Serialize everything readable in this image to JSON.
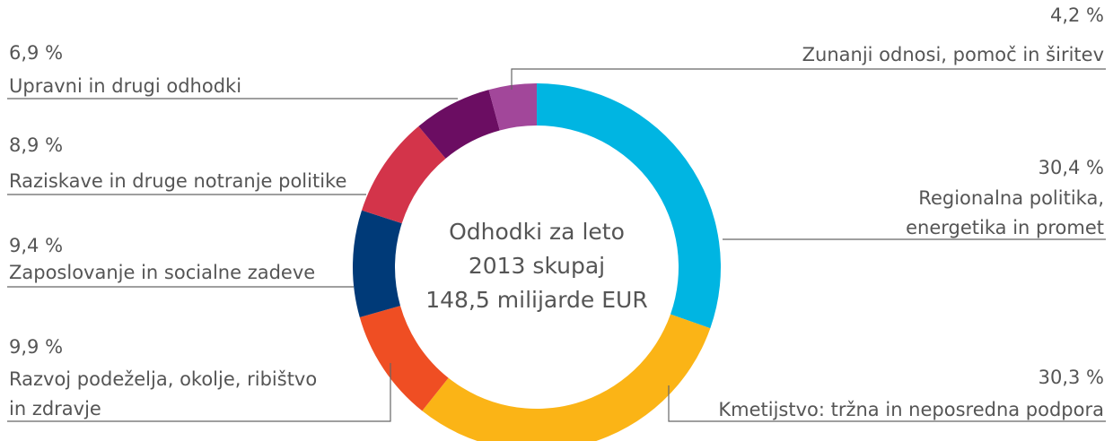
{
  "chart_data": {
    "type": "pie",
    "donut": true,
    "center_label": [
      "Odhodki za leto",
      "2013 skupaj",
      "148,5 milijarde EUR"
    ],
    "categories": [
      [
        "Regionalna politika,",
        "energetika in promet"
      ],
      [
        "Kmetijstvo: tržna in neposredna podpora"
      ],
      [
        "Razvoj podeželja, okolje, ribištvo",
        "in zdravje"
      ],
      [
        "Zaposlovanje in socialne zadeve"
      ],
      [
        "Raziskave in druge notranje politike"
      ],
      [
        "Upravni in drugi odhodki"
      ],
      [
        "Zunanji odnosi, pomoč in širitev"
      ]
    ],
    "values": [
      30.4,
      30.3,
      9.9,
      9.4,
      8.9,
      6.9,
      4.2
    ],
    "value_labels": [
      "30,4 %",
      "30,3 %",
      "9,9 %",
      "9,4 %",
      "8,9 %",
      "6,9 %",
      "4,2 %"
    ],
    "colors": [
      "#00b5e2",
      "#fbb416",
      "#ef4e23",
      "#003a78",
      "#d3344a",
      "#6b0d62",
      "#a2479a"
    ]
  }
}
